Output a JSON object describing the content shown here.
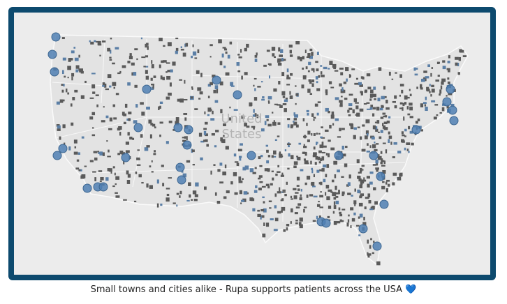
{
  "map": {
    "label": "United States"
  },
  "caption": "Small towns and cities alike - Rupa supports patients across the USA 💙"
}
